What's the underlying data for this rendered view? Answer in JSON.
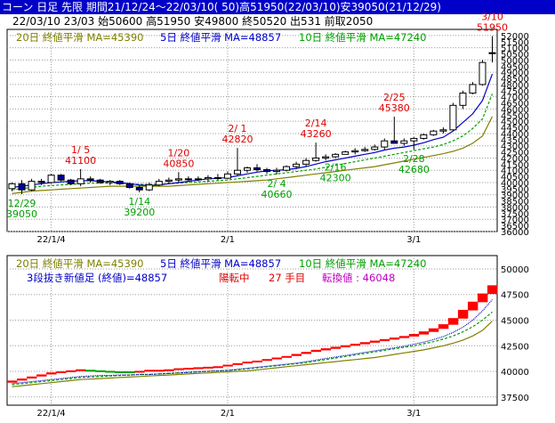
{
  "header": {
    "line1": "コーン 日足 先限 期間21/12/24～22/03/10( 50)高51950(22/03/10)安39050(21/12/29)",
    "line2": "22/03/10 23/03 始50600 高51950 安49800 終50520 出531 前取2050"
  },
  "colors": {
    "header_bg": "#0000c8",
    "ma20": "#808000",
    "ma5": "#0000c8",
    "ma10": "#00a000",
    "candle_up": "#ffffff",
    "candle_down": "#0000a0",
    "high_label": "#e00000",
    "low_label": "#00a000",
    "grid": "#9a9a9a",
    "brick_up": "#ff0000",
    "brick_down": "#00a000"
  },
  "chart_data": [
    {
      "type": "candlestick",
      "legend": [
        {
          "label": "20日 終値平滑 MA=45390",
          "key": "ma20"
        },
        {
          "label": "5日 終値平滑 MA=48857",
          "key": "ma5"
        },
        {
          "label": "10日 終値平滑 MA=47240",
          "key": "ma10"
        }
      ],
      "y_ticks": [
        36000,
        36500,
        37000,
        37500,
        38000,
        38500,
        39000,
        39500,
        40000,
        40500,
        41000,
        41500,
        42000,
        42500,
        43000,
        43500,
        44000,
        44500,
        45000,
        45500,
        46000,
        46500,
        47000,
        47500,
        48000,
        48500,
        49000,
        49500,
        50000,
        50500,
        51000,
        51500,
        52000
      ],
      "ylim": [
        36000,
        52500
      ],
      "x_ticks": [
        {
          "label": "22/1/4",
          "i": 4
        },
        {
          "label": "2/1",
          "i": 22
        },
        {
          "label": "3/1",
          "i": 41
        }
      ],
      "ohlc": [
        [
          39500,
          40000,
          39300,
          39900
        ],
        [
          39900,
          40200,
          39050,
          39400
        ],
        [
          39400,
          40300,
          39300,
          40100
        ],
        [
          40100,
          40300,
          39800,
          40000
        ],
        [
          40000,
          40700,
          39900,
          40600
        ],
        [
          40600,
          40700,
          40100,
          40200
        ],
        [
          40200,
          40300,
          39800,
          39900
        ],
        [
          39900,
          41100,
          39700,
          40300
        ],
        [
          40300,
          40500,
          40000,
          40200
        ],
        [
          40200,
          40300,
          39900,
          40000
        ],
        [
          40000,
          40200,
          39800,
          40100
        ],
        [
          40100,
          40200,
          39800,
          39900
        ],
        [
          39900,
          40000,
          39500,
          39600
        ],
        [
          39600,
          39800,
          39200,
          39400
        ],
        [
          39400,
          40000,
          39300,
          39800
        ],
        [
          39800,
          40300,
          39700,
          40100
        ],
        [
          40100,
          40400,
          39900,
          40200
        ],
        [
          40200,
          40850,
          40000,
          40300
        ],
        [
          40300,
          40500,
          40100,
          40250
        ],
        [
          40250,
          40500,
          40100,
          40300
        ],
        [
          40300,
          40600,
          40100,
          40400
        ],
        [
          40400,
          40700,
          40200,
          40350
        ],
        [
          40350,
          40900,
          40300,
          40700
        ],
        [
          40700,
          42820,
          40600,
          41000
        ],
        [
          41000,
          41300,
          40800,
          41200
        ],
        [
          41200,
          41500,
          40900,
          41050
        ],
        [
          41050,
          41200,
          40700,
          40900
        ],
        [
          40900,
          41200,
          40660,
          41000
        ],
        [
          41000,
          41400,
          40900,
          41300
        ],
        [
          41300,
          41700,
          41100,
          41500
        ],
        [
          41500,
          42000,
          41300,
          41800
        ],
        [
          41800,
          43260,
          41700,
          42000
        ],
        [
          42000,
          42300,
          41800,
          42100
        ],
        [
          42100,
          42400,
          42000,
          42300
        ],
        [
          42300,
          42600,
          42300,
          42500
        ],
        [
          42500,
          42800,
          42300,
          42600
        ],
        [
          42600,
          42900,
          42500,
          42700
        ],
        [
          42700,
          43100,
          42600,
          42900
        ],
        [
          42900,
          43600,
          42700,
          43400
        ],
        [
          43400,
          45380,
          43200,
          43200
        ],
        [
          43200,
          43600,
          43000,
          43400
        ],
        [
          43400,
          43700,
          42680,
          43600
        ],
        [
          43600,
          44000,
          43500,
          43900
        ],
        [
          43900,
          44300,
          43800,
          44200
        ],
        [
          44200,
          44500,
          44000,
          44300
        ],
        [
          44300,
          46500,
          44200,
          46300
        ],
        [
          46300,
          47500,
          46000,
          47300
        ],
        [
          47300,
          48200,
          47200,
          48000
        ],
        [
          48000,
          50000,
          47900,
          49800
        ],
        [
          50600,
          51950,
          49800,
          50520
        ]
      ],
      "ma5": [
        39600,
        39700,
        39800,
        39900,
        40000,
        40050,
        40100,
        40150,
        40150,
        40100,
        40050,
        40000,
        39900,
        39800,
        39750,
        39800,
        39900,
        40000,
        40100,
        40200,
        40300,
        40350,
        40400,
        40550,
        40700,
        40850,
        40950,
        41000,
        41050,
        41150,
        41300,
        41500,
        41700,
        41850,
        42000,
        42150,
        42300,
        42450,
        42650,
        42800,
        42900,
        43050,
        43250,
        43500,
        43700,
        44200,
        44900,
        45600,
        46700,
        48857
      ],
      "ma10": [
        39400,
        39500,
        39600,
        39700,
        39750,
        39800,
        39850,
        39900,
        39950,
        39950,
        39950,
        39950,
        39900,
        39850,
        39850,
        39850,
        39900,
        39950,
        40000,
        40050,
        40100,
        40150,
        40200,
        40300,
        40400,
        40500,
        40600,
        40700,
        40800,
        40900,
        41000,
        41100,
        41250,
        41400,
        41550,
        41700,
        41850,
        42000,
        42150,
        42300,
        42450,
        42600,
        42750,
        42900,
        43100,
        43400,
        43800,
        44400,
        45200,
        47240
      ],
      "ma20": [
        39100,
        39200,
        39300,
        39350,
        39400,
        39450,
        39500,
        39550,
        39600,
        39650,
        39700,
        39700,
        39700,
        39700,
        39700,
        39700,
        39700,
        39750,
        39800,
        39850,
        39900,
        39950,
        40000,
        40050,
        40100,
        40150,
        40200,
        40300,
        40400,
        40500,
        40600,
        40700,
        40800,
        40900,
        41000,
        41100,
        41200,
        41300,
        41450,
        41600,
        41750,
        41900,
        42050,
        42200,
        42350,
        42550,
        42800,
        43200,
        43800,
        45390
      ],
      "annotations": [
        {
          "date": "3/10",
          "value": "51950",
          "i": 49,
          "kind": "high"
        },
        {
          "date": "2/25",
          "value": "45380",
          "i": 39,
          "kind": "high"
        },
        {
          "date": "2/14",
          "value": "43260",
          "i": 31,
          "kind": "high"
        },
        {
          "date": "2/ 1",
          "value": "42820",
          "i": 23,
          "kind": "high"
        },
        {
          "date": "1/20",
          "value": "40850",
          "i": 17,
          "kind": "high"
        },
        {
          "date": "1/ 5",
          "value": "41100",
          "i": 7,
          "kind": "high"
        },
        {
          "date": "12/29",
          "value": "39050",
          "i": 1,
          "kind": "low"
        },
        {
          "date": "1/14",
          "value": "39200",
          "i": 13,
          "kind": "low"
        },
        {
          "date": "2/ 4",
          "value": "40660",
          "i": 27,
          "kind": "low"
        },
        {
          "date": "2/16",
          "value": "42300",
          "i": 33,
          "kind": "low"
        },
        {
          "date": "2/28",
          "value": "42680",
          "i": 41,
          "kind": "low"
        }
      ]
    },
    {
      "type": "three-line-break",
      "legend": [
        {
          "label": "20日 終値平滑 MA=45390",
          "key": "ma20"
        },
        {
          "label": "5日 終値平滑 MA=48857",
          "key": "ma5"
        },
        {
          "label": "10日 終値平滑 MA=47240",
          "key": "ma10"
        }
      ],
      "info": {
        "title": "3段抜き新値足 (終値)=48857",
        "status": "陽転中",
        "steps": "27 手目",
        "reversal": "転換値 : 46048"
      },
      "y_ticks": [
        37500,
        40000,
        42500,
        45000,
        47500,
        50000
      ],
      "ylim": [
        36700,
        51300
      ],
      "x_ticks": [
        {
          "label": "22/1/4",
          "i": 4
        },
        {
          "label": "2/1",
          "i": 22
        },
        {
          "label": "3/1",
          "i": 41
        }
      ],
      "bricks": [
        {
          "i": 0,
          "from": 38900,
          "to": 39100,
          "up": true
        },
        {
          "i": 1,
          "from": 39100,
          "to": 39300,
          "up": true
        },
        {
          "i": 2,
          "from": 39300,
          "to": 39500,
          "up": true
        },
        {
          "i": 3,
          "from": 39500,
          "to": 39700,
          "up": true
        },
        {
          "i": 4,
          "from": 39700,
          "to": 39900,
          "up": true
        },
        {
          "i": 5,
          "from": 39900,
          "to": 40000,
          "up": true
        },
        {
          "i": 6,
          "from": 40000,
          "to": 40100,
          "up": true
        },
        {
          "i": 7,
          "from": 40100,
          "to": 40200,
          "up": true
        },
        {
          "i": 8,
          "from": 40150,
          "to": 40050,
          "up": false
        },
        {
          "i": 9,
          "from": 40100,
          "to": 40000,
          "up": false
        },
        {
          "i": 10,
          "from": 40050,
          "to": 39950,
          "up": false
        },
        {
          "i": 11,
          "from": 40000,
          "to": 39900,
          "up": false
        },
        {
          "i": 12,
          "from": 40000,
          "to": 39900,
          "up": false
        },
        {
          "i": 13,
          "from": 39900,
          "to": 40050,
          "up": true
        },
        {
          "i": 14,
          "from": 40000,
          "to": 40150,
          "up": true
        },
        {
          "i": 15,
          "from": 40050,
          "to": 40150,
          "up": true
        },
        {
          "i": 16,
          "from": 40100,
          "to": 40200,
          "up": true
        },
        {
          "i": 17,
          "from": 40200,
          "to": 40300,
          "up": true
        },
        {
          "i": 18,
          "from": 40250,
          "to": 40350,
          "up": true
        },
        {
          "i": 19,
          "from": 40300,
          "to": 40400,
          "up": true
        },
        {
          "i": 20,
          "from": 40350,
          "to": 40450,
          "up": true
        },
        {
          "i": 21,
          "from": 40400,
          "to": 40500,
          "up": true
        },
        {
          "i": 22,
          "from": 40500,
          "to": 40650,
          "up": true
        },
        {
          "i": 23,
          "from": 40650,
          "to": 40800,
          "up": true
        },
        {
          "i": 24,
          "from": 40800,
          "to": 40950,
          "up": true
        },
        {
          "i": 25,
          "from": 40950,
          "to": 41050,
          "up": true
        },
        {
          "i": 26,
          "from": 41050,
          "to": 41200,
          "up": true
        },
        {
          "i": 27,
          "from": 41200,
          "to": 41350,
          "up": true
        },
        {
          "i": 28,
          "from": 41350,
          "to": 41500,
          "up": true
        },
        {
          "i": 29,
          "from": 41500,
          "to": 41700,
          "up": true
        },
        {
          "i": 30,
          "from": 41700,
          "to": 41900,
          "up": true
        },
        {
          "i": 31,
          "from": 41900,
          "to": 42100,
          "up": true
        },
        {
          "i": 32,
          "from": 42050,
          "to": 42250,
          "up": true
        },
        {
          "i": 33,
          "from": 42200,
          "to": 42400,
          "up": true
        },
        {
          "i": 34,
          "from": 42350,
          "to": 42550,
          "up": true
        },
        {
          "i": 35,
          "from": 42500,
          "to": 42700,
          "up": true
        },
        {
          "i": 36,
          "from": 42650,
          "to": 42850,
          "up": true
        },
        {
          "i": 37,
          "from": 42800,
          "to": 43000,
          "up": true
        },
        {
          "i": 38,
          "from": 42950,
          "to": 43150,
          "up": true
        },
        {
          "i": 39,
          "from": 43100,
          "to": 43300,
          "up": true
        },
        {
          "i": 40,
          "from": 43250,
          "to": 43450,
          "up": true
        },
        {
          "i": 41,
          "from": 43400,
          "to": 43650,
          "up": true
        },
        {
          "i": 42,
          "from": 43600,
          "to": 43900,
          "up": true
        },
        {
          "i": 43,
          "from": 43850,
          "to": 44200,
          "up": true
        },
        {
          "i": 44,
          "from": 44150,
          "to": 44600,
          "up": true
        },
        {
          "i": 45,
          "from": 44550,
          "to": 45200,
          "up": true
        },
        {
          "i": 46,
          "from": 45150,
          "to": 46000,
          "up": true
        },
        {
          "i": 47,
          "from": 45950,
          "to": 46800,
          "up": true
        },
        {
          "i": 48,
          "from": 46750,
          "to": 47600,
          "up": true
        },
        {
          "i": 49,
          "from": 47550,
          "to": 48400,
          "up": true
        }
      ],
      "ma5": [
        38800,
        38900,
        39000,
        39100,
        39200,
        39300,
        39400,
        39500,
        39550,
        39600,
        39600,
        39650,
        39650,
        39700,
        39700,
        39750,
        39800,
        39850,
        39900,
        39950,
        40000,
        40050,
        40100,
        40200,
        40300,
        40400,
        40500,
        40600,
        40700,
        40800,
        40950,
        41100,
        41250,
        41400,
        41550,
        41700,
        41850,
        42000,
        42150,
        42300,
        42450,
        42650,
        42850,
        43100,
        43400,
        43800,
        44300,
        45000,
        45900,
        47000
      ],
      "ma10": [
        38700,
        38800,
        38900,
        39000,
        39100,
        39200,
        39300,
        39400,
        39450,
        39500,
        39550,
        39600,
        39650,
        39700,
        39700,
        39750,
        39800,
        39850,
        39900,
        39950,
        40000,
        40050,
        40100,
        40150,
        40250,
        40350,
        40450,
        40550,
        40650,
        40750,
        40850,
        41000,
        41150,
        41300,
        41450,
        41600,
        41750,
        41900,
        42050,
        42200,
        42350,
        42500,
        42700,
        42900,
        43150,
        43450,
        43850,
        44350,
        45000,
        45800
      ],
      "ma20": [
        38500,
        38600,
        38700,
        38800,
        38900,
        39000,
        39100,
        39200,
        39250,
        39300,
        39350,
        39400,
        39450,
        39500,
        39550,
        39600,
        39650,
        39700,
        39750,
        39800,
        39850,
        39900,
        39950,
        40000,
        40050,
        40150,
        40250,
        40350,
        40450,
        40550,
        40650,
        40750,
        40850,
        40950,
        41050,
        41150,
        41250,
        41350,
        41500,
        41650,
        41800,
        41950,
        42100,
        42300,
        42500,
        42750,
        43050,
        43450,
        44000,
        44900
      ]
    }
  ]
}
